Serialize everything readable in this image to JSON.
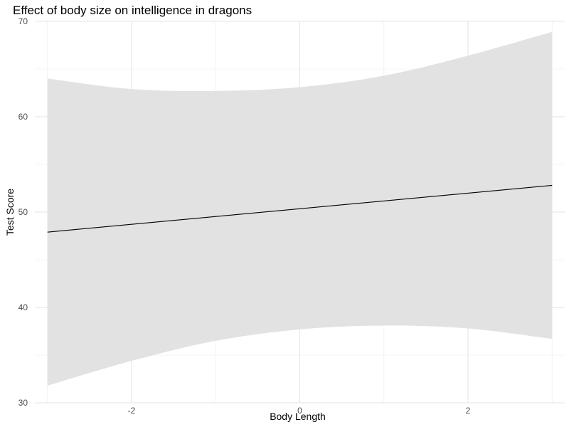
{
  "chart_data": {
    "type": "line",
    "title": "Effect of body size on intelligence in dragons",
    "xlabel": "Body Length",
    "ylabel": "Test Score",
    "xlim": [
      -3.15,
      3.15
    ],
    "ylim": [
      30,
      70
    ],
    "x_ticks": [
      -2,
      0,
      2
    ],
    "x_tick_labels": [
      "-2",
      "0",
      "2"
    ],
    "x_minor_ticks": [
      -3,
      -1,
      1,
      3
    ],
    "y_ticks": [
      30,
      40,
      50,
      60,
      70
    ],
    "y_tick_labels": [
      "30",
      "40",
      "50",
      "60",
      "70"
    ],
    "y_minor_ticks": [
      35,
      45,
      55,
      65
    ],
    "grid": true,
    "series": [
      {
        "x": [
          -3,
          3
        ],
        "y": [
          47.9,
          52.8
        ],
        "ribbon_x": [
          -3,
          -2,
          -1,
          0,
          1,
          2,
          3
        ],
        "ribbon_lower": [
          31.8,
          34.4,
          36.5,
          37.7,
          38.1,
          37.8,
          36.7
        ],
        "ribbon_upper": [
          64.0,
          62.9,
          62.7,
          63.1,
          64.3,
          66.4,
          68.9
        ]
      }
    ],
    "colors": {
      "line": "#000000",
      "ribbon": "#e0e0e0",
      "grid_major": "#e3e3e3",
      "grid_minor": "#f0f0f0"
    }
  }
}
